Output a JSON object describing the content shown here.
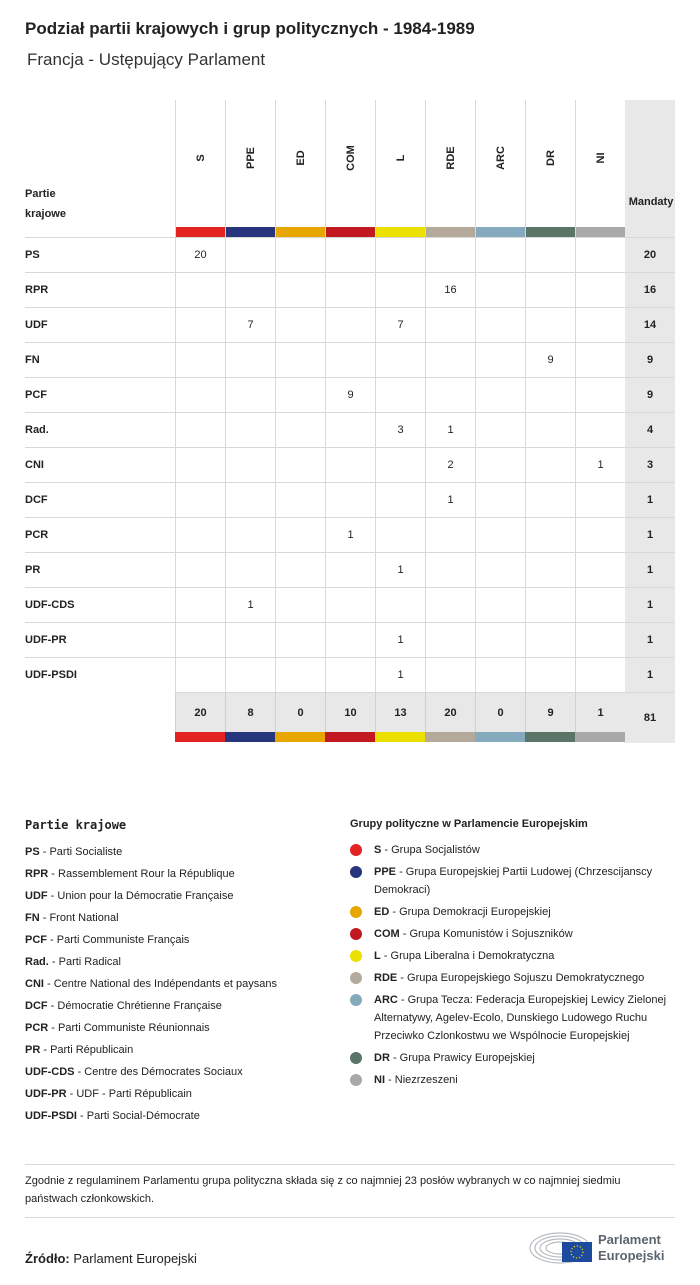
{
  "title": "Podział partii krajowych i grup politycznych - 1984-1989",
  "subtitle": "Francja - Ustępujący Parlament",
  "table": {
    "party_header": "Partie krajowe",
    "mandates_header": "Mandaty",
    "groups": [
      {
        "code": "S",
        "color": "#e32322"
      },
      {
        "code": "PPE",
        "color": "#27357c"
      },
      {
        "code": "ED",
        "color": "#e8a600"
      },
      {
        "code": "COM",
        "color": "#c1191f"
      },
      {
        "code": "L",
        "color": "#ece000"
      },
      {
        "code": "RDE",
        "color": "#b3aa9b"
      },
      {
        "code": "ARC",
        "color": "#85a9bd"
      },
      {
        "code": "DR",
        "color": "#5a7468"
      },
      {
        "code": "NI",
        "color": "#a9a9a9"
      }
    ],
    "rows": [
      {
        "party": "PS",
        "values": [
          "20",
          "",
          "",
          "",
          "",
          "",
          "",
          "",
          ""
        ],
        "total": "20"
      },
      {
        "party": "RPR",
        "values": [
          "",
          "",
          "",
          "",
          "",
          "16",
          "",
          "",
          ""
        ],
        "total": "16"
      },
      {
        "party": "UDF",
        "values": [
          "",
          "7",
          "",
          "",
          "7",
          "",
          "",
          "",
          ""
        ],
        "total": "14"
      },
      {
        "party": "FN",
        "values": [
          "",
          "",
          "",
          "",
          "",
          "",
          "",
          "9",
          ""
        ],
        "total": "9"
      },
      {
        "party": "PCF",
        "values": [
          "",
          "",
          "",
          "9",
          "",
          "",
          "",
          "",
          ""
        ],
        "total": "9"
      },
      {
        "party": "Rad.",
        "values": [
          "",
          "",
          "",
          "",
          "3",
          "1",
          "",
          "",
          ""
        ],
        "total": "4"
      },
      {
        "party": "CNI",
        "values": [
          "",
          "",
          "",
          "",
          "",
          "2",
          "",
          "",
          "1"
        ],
        "total": "3"
      },
      {
        "party": "DCF",
        "values": [
          "",
          "",
          "",
          "",
          "",
          "1",
          "",
          "",
          ""
        ],
        "total": "1"
      },
      {
        "party": "PCR",
        "values": [
          "",
          "",
          "",
          "1",
          "",
          "",
          "",
          "",
          ""
        ],
        "total": "1"
      },
      {
        "party": "PR",
        "values": [
          "",
          "",
          "",
          "",
          "1",
          "",
          "",
          "",
          ""
        ],
        "total": "1"
      },
      {
        "party": "UDF-CDS",
        "values": [
          "",
          "1",
          "",
          "",
          "",
          "",
          "",
          "",
          ""
        ],
        "total": "1"
      },
      {
        "party": "UDF-PR",
        "values": [
          "",
          "",
          "",
          "",
          "1",
          "",
          "",
          "",
          ""
        ],
        "total": "1"
      },
      {
        "party": "UDF-PSDI",
        "values": [
          "",
          "",
          "",
          "",
          "1",
          "",
          "",
          "",
          ""
        ],
        "total": "1"
      }
    ],
    "totals": [
      "20",
      "8",
      "0",
      "10",
      "13",
      "20",
      "0",
      "9",
      "1"
    ],
    "grand_total": "81"
  },
  "legend_parties": {
    "title": "Partie krajowe",
    "items": [
      {
        "code": "PS",
        "name": "Parti Socialiste"
      },
      {
        "code": "RPR",
        "name": "Rassemblement Rour la République"
      },
      {
        "code": "UDF",
        "name": "Union pour la Démocratie Française"
      },
      {
        "code": "FN",
        "name": "Front National"
      },
      {
        "code": "PCF",
        "name": "Parti Communiste Français"
      },
      {
        "code": "Rad.",
        "name": "Parti Radical"
      },
      {
        "code": "CNI",
        "name": "Centre National des Indépendants et paysans"
      },
      {
        "code": "DCF",
        "name": "Démocratie Chrétienne Française"
      },
      {
        "code": "PCR",
        "name": "Parti Communiste Réunionnais"
      },
      {
        "code": "PR",
        "name": "Parti Républicain"
      },
      {
        "code": "UDF-CDS",
        "name": "Centre des Démocrates Sociaux"
      },
      {
        "code": "UDF-PR",
        "name": "UDF - Parti Républicain"
      },
      {
        "code": "UDF-PSDI",
        "name": "Parti Social-Démocrate"
      }
    ]
  },
  "legend_groups": {
    "title": "Grupy polityczne w Parlamencie Europejskim",
    "items": [
      {
        "code": "S",
        "name": "Grupa Socjalistów",
        "color": "#e32322"
      },
      {
        "code": "PPE",
        "name": "Grupa Europejskiej Partii Ludowej (Chrzescijanscy Demokraci)",
        "color": "#27357c"
      },
      {
        "code": "ED",
        "name": "Grupa Demokracji Europejskiej",
        "color": "#e8a600"
      },
      {
        "code": "COM",
        "name": "Grupa Komunistów i Sojuszników",
        "color": "#c1191f"
      },
      {
        "code": "L",
        "name": "Grupa Liberalna i Demokratyczna",
        "color": "#ece000"
      },
      {
        "code": "RDE",
        "name": "Grupa Europejskiego Sojuszu Demokratycznego",
        "color": "#b3aa9b"
      },
      {
        "code": "ARC",
        "name": "Grupa Tecza: Federacja Europejskiej Lewicy Zielonej Alternatywy, Agelev-Ecolo, Dunskiego Ludowego Ruchu Przeciwko Czlonkostwu we Wspólnocie Europejskiej",
        "color": "#85a9bd"
      },
      {
        "code": "DR",
        "name": "Grupa Prawicy Europejskiej",
        "color": "#5a7468"
      },
      {
        "code": "NI",
        "name": "Niezrzeszeni",
        "color": "#a9a9a9"
      }
    ]
  },
  "note": "Zgodnie z regulaminem Parlamentu grupa polityczna składa się z co najmniej 23 posłów wybranych w co najmniej siedmiu państwach członkowskich.",
  "source": {
    "label": "Źródło:",
    "value": "Parlament Europejski"
  },
  "logo": {
    "line1": "Parlament",
    "line2": "Europejski"
  }
}
